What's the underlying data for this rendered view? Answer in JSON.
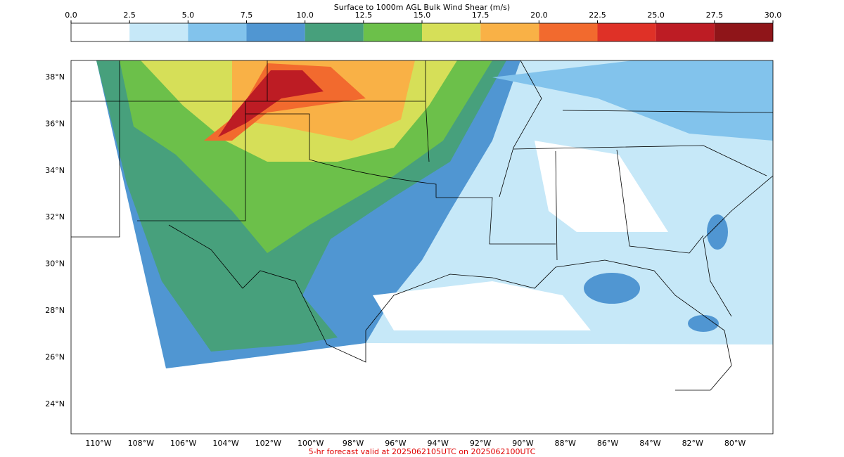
{
  "title": "Surface to 1000m AGL Bulk Wind Shear (m/s)",
  "colorbar": {
    "ticks": [
      {
        "value": 0,
        "label": "0.0"
      },
      2.5,
      {
        "value": 5,
        "label": "5.0"
      },
      7.5,
      {
        "value": 10,
        "label": "10.0"
      },
      12.5,
      {
        "value": 15,
        "label": "15.0"
      },
      17.5,
      {
        "value": 20,
        "label": "20.0"
      },
      22.5,
      {
        "value": 25,
        "label": "25.0"
      },
      27.5,
      {
        "value": 30,
        "label": "30.0"
      }
    ],
    "colors": [
      "#ffffff",
      "#c6e8f8",
      "#82c3ec",
      "#5096d2",
      "#47a07c",
      "#6cc04a",
      "#d6df58",
      "#f9b146",
      "#f26a2e",
      "#df3127",
      "#bd1c24",
      "#8f1519"
    ]
  },
  "map": {
    "lat_ticks": [
      {
        "value": 38,
        "label": "38°N"
      },
      {
        "value": 36,
        "label": "36°N"
      },
      {
        "value": 34,
        "label": "34°N"
      },
      {
        "value": 32,
        "label": "32°N"
      },
      {
        "value": 30,
        "label": "30°N"
      },
      {
        "value": 28,
        "label": "28°N"
      },
      {
        "value": 26,
        "label": "26°N"
      },
      {
        "value": 24,
        "label": "24°N"
      }
    ],
    "lon_ticks": [
      {
        "value": -110,
        "label": "110°W"
      },
      {
        "value": -108,
        "label": "108°W"
      },
      {
        "value": -106,
        "label": "106°W"
      },
      {
        "value": -104,
        "label": "104°W"
      },
      {
        "value": -102,
        "label": "102°W"
      },
      {
        "value": -100,
        "label": "100°W"
      },
      {
        "value": -98,
        "label": "98°W"
      },
      {
        "value": -96,
        "label": "96°W"
      },
      {
        "value": -94,
        "label": "94°W"
      },
      {
        "value": -92,
        "label": "92°W"
      },
      {
        "value": -90,
        "label": "90°W"
      },
      {
        "value": -88,
        "label": "88°W"
      },
      {
        "value": -86,
        "label": "86°W"
      },
      {
        "value": -84,
        "label": "84°W"
      },
      {
        "value": -82,
        "label": "82°W"
      },
      {
        "value": -80,
        "label": "80°W"
      }
    ]
  },
  "footer": "5-hr forecast valid at 2025062105UTC on 2025062100UTC"
}
